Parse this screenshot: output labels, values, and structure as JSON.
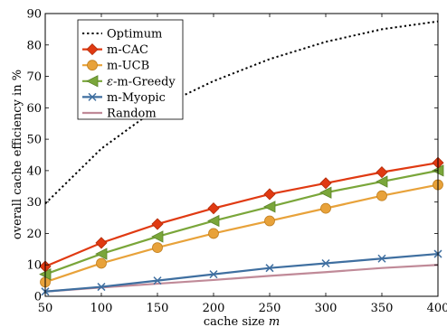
{
  "chart_data": {
    "type": "line",
    "xlabel": "cache size m",
    "ylabel": "overall cache efficiency in %",
    "xlim": [
      50,
      400
    ],
    "ylim": [
      0,
      90
    ],
    "xticks": [
      50,
      100,
      150,
      200,
      250,
      300,
      350,
      400
    ],
    "yticks": [
      0,
      10,
      20,
      30,
      40,
      50,
      60,
      70,
      80,
      90
    ],
    "x": [
      50,
      100,
      150,
      200,
      250,
      300,
      350,
      400
    ],
    "grid": false,
    "legend_position": "top-left",
    "series": [
      {
        "name": "Optimum",
        "color": "#000000",
        "style": "dotted",
        "marker": "none",
        "x": [
          50,
          100,
          150,
          200,
          250,
          300,
          350,
          400
        ],
        "values": [
          29.5,
          47,
          60,
          68.5,
          75.5,
          81,
          85,
          87.5
        ]
      },
      {
        "name": "m-CAC",
        "color": "#e03a12",
        "style": "solid",
        "marker": "diamond",
        "values": [
          9.5,
          17,
          23,
          28,
          32.5,
          36,
          39.5,
          42.5
        ]
      },
      {
        "name": "m-UCB",
        "color": "#e8a23a",
        "style": "solid",
        "marker": "circle",
        "values": [
          4.5,
          10.5,
          15.5,
          20,
          24,
          28,
          32,
          35.5
        ]
      },
      {
        "name": "ε-m-Greedy",
        "color": "#7aa63a",
        "style": "solid",
        "marker": "triangle-left",
        "values": [
          7,
          13.5,
          19,
          24,
          28.5,
          33,
          36.5,
          40
        ]
      },
      {
        "name": "m-Myopic",
        "color": "#3f6fa0",
        "style": "solid",
        "marker": "x",
        "values": [
          1.5,
          3,
          5,
          7,
          9,
          10.5,
          12,
          13.5
        ]
      },
      {
        "name": "Random",
        "color": "#c08a98",
        "style": "solid",
        "marker": "none",
        "values": [
          1.5,
          2.8,
          4,
          5.2,
          6.5,
          7.7,
          9,
          10
        ]
      }
    ]
  }
}
